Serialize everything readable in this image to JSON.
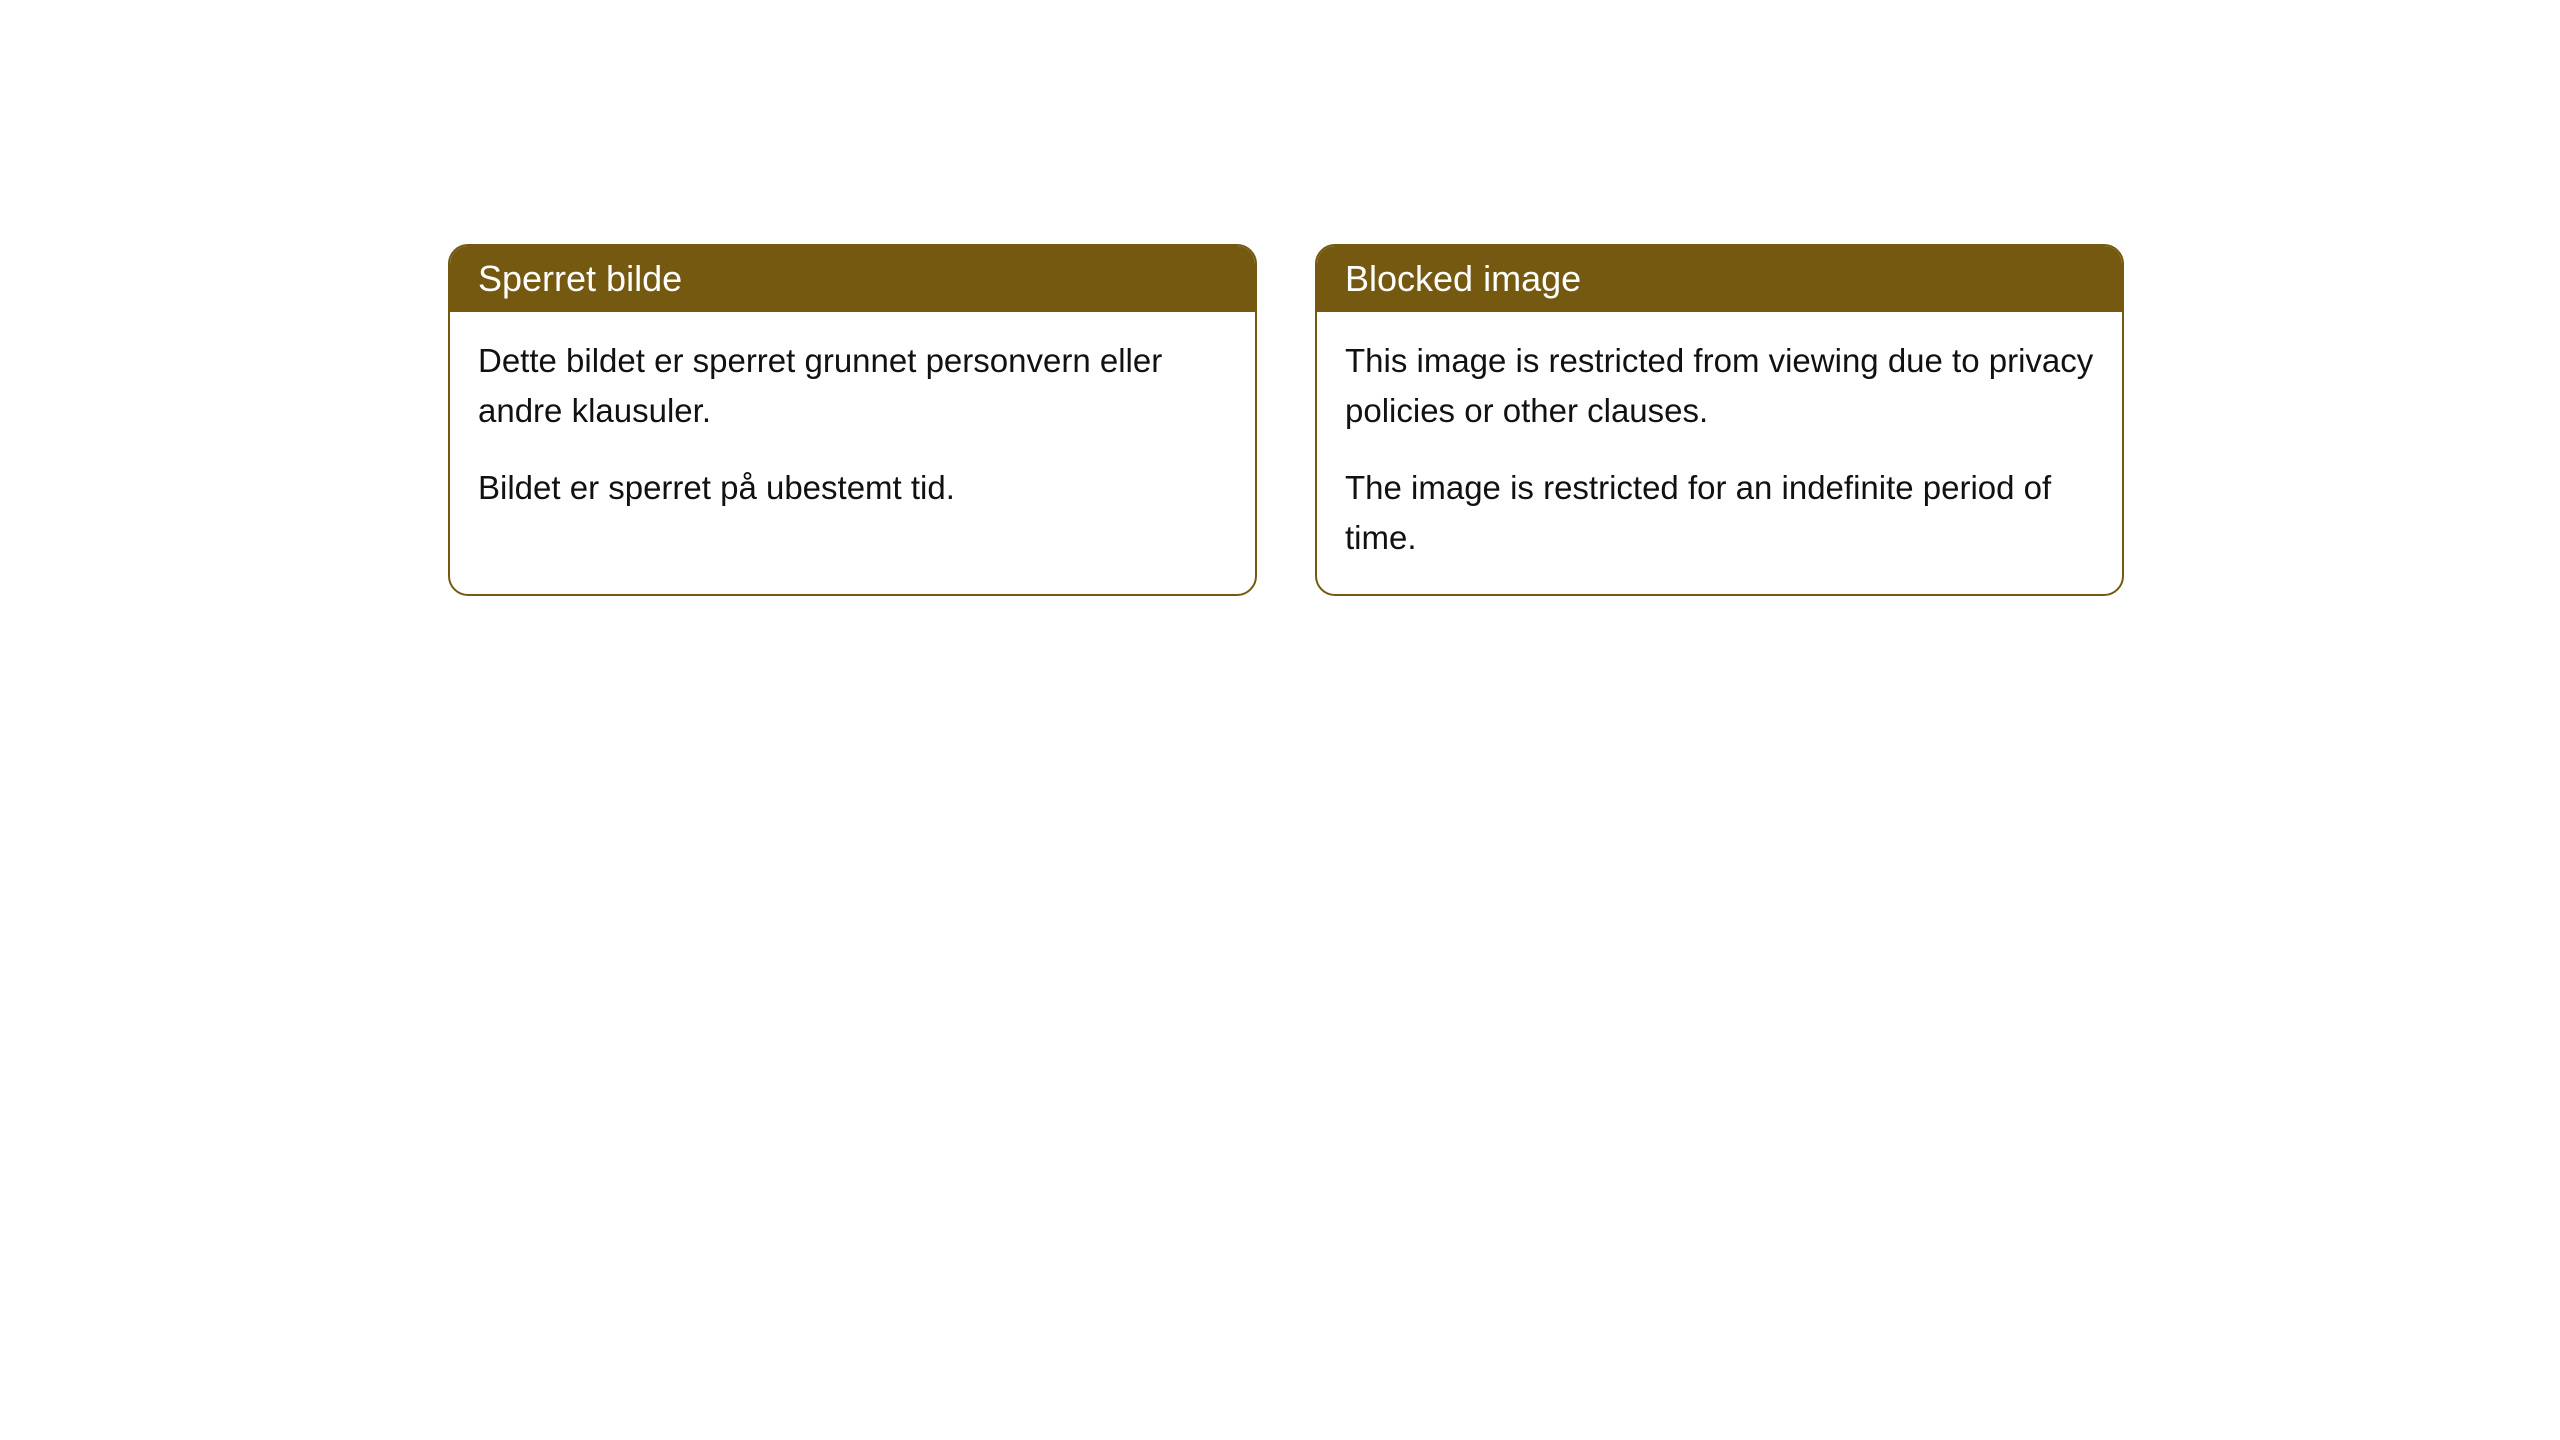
{
  "cards": [
    {
      "title": "Sperret bilde",
      "paragraph1": "Dette bildet er sperret grunnet personvern eller andre klausuler.",
      "paragraph2": "Bildet er sperret på ubestemt tid."
    },
    {
      "title": "Blocked image",
      "paragraph1": "This image is restricted from viewing due to privacy policies or other clauses.",
      "paragraph2": "The image is restricted for an indefinite period of time."
    }
  ],
  "styling": {
    "header_background_color": "#765911",
    "header_text_color": "#ffffff",
    "border_color": "#765911",
    "body_background_color": "#ffffff",
    "body_text_color": "#111111",
    "border_radius": 20,
    "header_fontsize": 36,
    "body_fontsize": 33
  }
}
